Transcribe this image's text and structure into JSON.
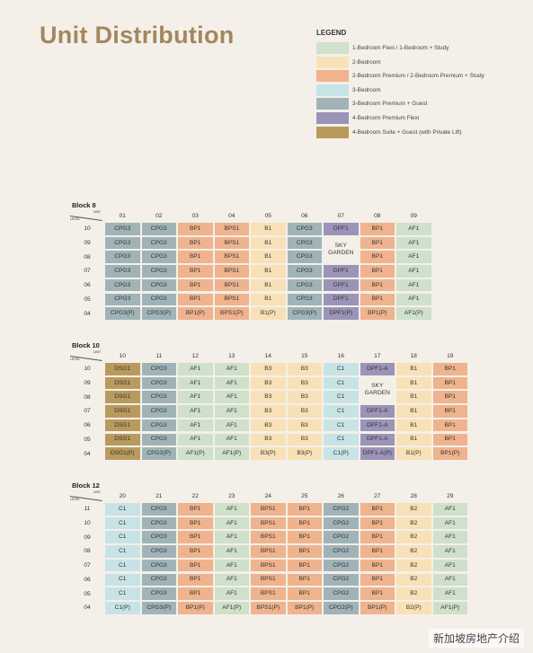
{
  "header": {
    "title": "Unit Distribution"
  },
  "legend": {
    "title": "LEGEND",
    "items": [
      {
        "label": "1-Bedroom Flexi / 1-Bedroom + Study",
        "color": "#cfe0cb"
      },
      {
        "label": "2-Bedroom",
        "color": "#f8e1b7"
      },
      {
        "label": "2-Bedroom Premium / 2-Bedroom Premium + Study",
        "color": "#efb38d"
      },
      {
        "label": "3-Bedroom",
        "color": "#c8e3e6"
      },
      {
        "label": "3-Bedroom Premium + Guest",
        "color": "#a0b4b8"
      },
      {
        "label": "4-Bedroom Premium Flexi",
        "color": "#9b94b8"
      },
      {
        "label": "4-Bedroom Suite + Guest (with Private Lift)",
        "color": "#b99a5d"
      }
    ]
  },
  "unit_colors": {
    "AF1": "#cfe0cb",
    "B1": "#f8e1b7",
    "B2": "#f8e1b7",
    "B3": "#f8e1b7",
    "BP1": "#efb38d",
    "BPS1": "#efb38d",
    "C1": "#c8e3e6",
    "CPG2": "#a0b4b8",
    "CPG3": "#a0b4b8",
    "DPF1": "#9b94b8",
    "DPF1-A": "#9b94b8",
    "DSG1": "#b99a5d"
  },
  "blocks": [
    {
      "title": "Block 8",
      "unit_header": "UNIT",
      "level_header": "LEVEL",
      "units": [
        "01",
        "02",
        "03",
        "04",
        "05",
        "06",
        "07",
        "08",
        "09"
      ],
      "rows": [
        {
          "level": "10",
          "cells": [
            "CPG3",
            "CPG3",
            "BP1",
            "BPS1",
            "B1",
            "CPG3",
            "DPF1",
            "BP1",
            "AF1"
          ]
        },
        {
          "level": "09",
          "cells": [
            "CPG3",
            "CPG3",
            "BP1",
            "BPS1",
            "B1",
            "CPG3",
            "SKY GARDEN",
            "BP1",
            "AF1"
          ]
        },
        {
          "level": "08",
          "cells": [
            "CPG3",
            "CPG3",
            "BP1",
            "BPS1",
            "B1",
            "CPG3",
            null,
            "BP1",
            "AF1"
          ]
        },
        {
          "level": "07",
          "cells": [
            "CPG3",
            "CPG3",
            "BP1",
            "BPS1",
            "B1",
            "CPG3",
            "DPF1",
            "BP1",
            "AF1"
          ]
        },
        {
          "level": "06",
          "cells": [
            "CPG3",
            "CPG3",
            "BP1",
            "BPS1",
            "B1",
            "CPG3",
            "DPF1",
            "BP1",
            "AF1"
          ]
        },
        {
          "level": "05",
          "cells": [
            "CPG3",
            "CPG3",
            "BP1",
            "BPS1",
            "B1",
            "CPG3",
            "DPF1",
            "BP1",
            "AF1"
          ]
        },
        {
          "level": "04",
          "cells": [
            "CPG3(P)",
            "CPG3(P)",
            "BP1(P)",
            "BPS1(P)",
            "B1(P)",
            "CPG3(P)",
            "DPF1(P)",
            "BP1(P)",
            "AF1(P)"
          ]
        }
      ]
    },
    {
      "title": "Block 10",
      "unit_header": "UNIT",
      "level_header": "LEVEL",
      "units": [
        "10",
        "11",
        "12",
        "13",
        "14",
        "15",
        "16",
        "17",
        "18",
        "19"
      ],
      "rows": [
        {
          "level": "10",
          "cells": [
            "DSG1",
            "CPG3",
            "AF1",
            "AF1",
            "B3",
            "B3",
            "C1",
            "DPF1-A",
            "B1",
            "BP1"
          ]
        },
        {
          "level": "09",
          "cells": [
            "DSG1",
            "CPG3",
            "AF1",
            "AF1",
            "B3",
            "B3",
            "C1",
            "SKY GARDEN",
            "B1",
            "BP1"
          ]
        },
        {
          "level": "08",
          "cells": [
            "DSG1",
            "CPG3",
            "AF1",
            "AF1",
            "B3",
            "B3",
            "C1",
            null,
            "B1",
            "BP1"
          ]
        },
        {
          "level": "07",
          "cells": [
            "DSG1",
            "CPG3",
            "AF1",
            "AF1",
            "B3",
            "B3",
            "C1",
            "DPF1-A",
            "B1",
            "BP1"
          ]
        },
        {
          "level": "06",
          "cells": [
            "DSG1",
            "CPG3",
            "AF1",
            "AF1",
            "B3",
            "B3",
            "C1",
            "DPF1-A",
            "B1",
            "BP1"
          ]
        },
        {
          "level": "05",
          "cells": [
            "DSG1",
            "CPG3",
            "AF1",
            "AF1",
            "B3",
            "B3",
            "C1",
            "DPF1-A",
            "B1",
            "BP1"
          ]
        },
        {
          "level": "04",
          "cells": [
            "DSG1(P)",
            "CPG3(P)",
            "AF1(P)",
            "AF1(P)",
            "B3(P)",
            "B3(P)",
            "C1(P)",
            "DPF1-A(P)",
            "B1(P)",
            "BP1(P)"
          ]
        }
      ]
    },
    {
      "title": "Block 12",
      "unit_header": "UNIT",
      "level_header": "LEVEL",
      "units": [
        "20",
        "21",
        "22",
        "23",
        "24",
        "25",
        "26",
        "27",
        "28",
        "29"
      ],
      "rows": [
        {
          "level": "11",
          "cells": [
            "C1",
            "CPG3",
            "BP1",
            "AF1",
            "BPS1",
            "BP1",
            "CPG2",
            "BP1",
            "B2",
            "AF1"
          ]
        },
        {
          "level": "10",
          "cells": [
            "C1",
            "CPG3",
            "BP1",
            "AF1",
            "BPS1",
            "BP1",
            "CPG2",
            "BP1",
            "B2",
            "AF1"
          ]
        },
        {
          "level": "09",
          "cells": [
            "C1",
            "CPG3",
            "BP1",
            "AF1",
            "BPS1",
            "BP1",
            "CPG2",
            "BP1",
            "B2",
            "AF1"
          ]
        },
        {
          "level": "08",
          "cells": [
            "C1",
            "CPG3",
            "BP1",
            "AF1",
            "BPS1",
            "BP1",
            "CPG2",
            "BP1",
            "B2",
            "AF1"
          ]
        },
        {
          "level": "07",
          "cells": [
            "C1",
            "CPG3",
            "BP1",
            "AF1",
            "BPS1",
            "BP1",
            "CPG2",
            "BP1",
            "B2",
            "AF1"
          ]
        },
        {
          "level": "06",
          "cells": [
            "C1",
            "CPG3",
            "BP1",
            "AF1",
            "BPS1",
            "BP1",
            "CPG2",
            "BP1",
            "B2",
            "AF1"
          ]
        },
        {
          "level": "05",
          "cells": [
            "C1",
            "CPG3",
            "BP1",
            "AF1",
            "BPS1",
            "BP1",
            "CPG2",
            "BP1",
            "B2",
            "AF1"
          ]
        },
        {
          "level": "04",
          "cells": [
            "C1(P)",
            "CPG3(P)",
            "BP1(P)",
            "AF1(P)",
            "BPS1(P)",
            "BP1(P)",
            "CPG2(P)",
            "BP1(P)",
            "B2(P)",
            "AF1(P)"
          ]
        }
      ]
    }
  ],
  "watermark": "新加坡房地产介绍"
}
